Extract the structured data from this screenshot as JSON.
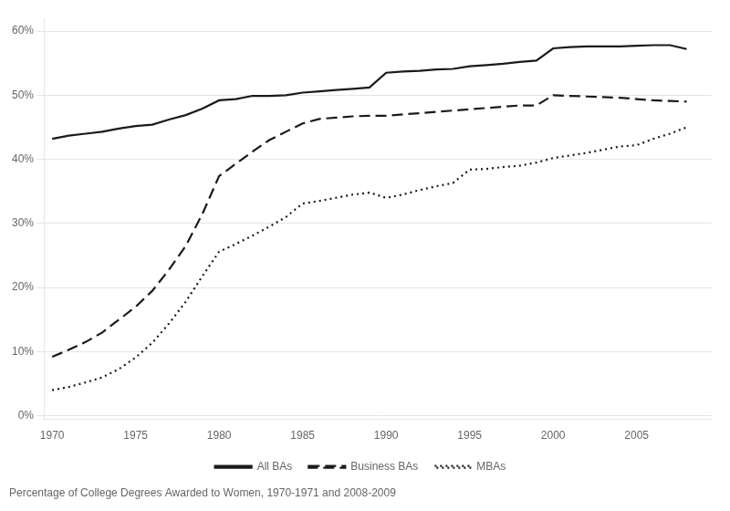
{
  "chart_data": {
    "type": "line",
    "title": "Percentage of College Degrees Awarded to Women, 1970-1971 and 2008-2009",
    "xlim": [
      1969.5,
      2009.5
    ],
    "ylim": [
      -0.005,
      0.62
    ],
    "xticks": [
      1970,
      1975,
      1980,
      1985,
      1990,
      1995,
      2000,
      2005
    ],
    "yticks": [
      {
        "value": 0.0,
        "label": "0%"
      },
      {
        "value": 0.1,
        "label": "10%"
      },
      {
        "value": 0.2,
        "label": "20%"
      },
      {
        "value": 0.3,
        "label": "30%"
      },
      {
        "value": 0.4,
        "label": "40%"
      },
      {
        "value": 0.5,
        "label": "50%"
      },
      {
        "value": 0.6,
        "label": "60%"
      }
    ],
    "grid": "y",
    "legend": "bottom",
    "series": [
      {
        "name": "All BAs",
        "color": "#1a1a1a",
        "line_style": "solid",
        "x": [
          1970,
          1971,
          1972,
          1973,
          1974,
          1975,
          1976,
          1977,
          1978,
          1979,
          1980,
          1981,
          1982,
          1983,
          1984,
          1985,
          1986,
          1987,
          1988,
          1989,
          1990,
          1991,
          1992,
          1993,
          1994,
          1995,
          1996,
          1997,
          1998,
          1999,
          2000,
          2001,
          2002,
          2003,
          2004,
          2005,
          2006,
          2007,
          2008
        ],
        "values": [
          0.432,
          0.437,
          0.44,
          0.443,
          0.448,
          0.452,
          0.454,
          0.462,
          0.469,
          0.479,
          0.492,
          0.494,
          0.499,
          0.499,
          0.5,
          0.504,
          0.506,
          0.508,
          0.51,
          0.512,
          0.535,
          0.537,
          0.538,
          0.54,
          0.541,
          0.545,
          0.547,
          0.549,
          0.552,
          0.554,
          0.573,
          0.575,
          0.576,
          0.576,
          0.576,
          0.577,
          0.578,
          0.578,
          0.572
        ]
      },
      {
        "name": "Business BAs",
        "color": "#1a1a1a",
        "line_style": "dashed",
        "x": [
          1970,
          1971,
          1972,
          1973,
          1974,
          1975,
          1976,
          1977,
          1978,
          1979,
          1980,
          1981,
          1982,
          1983,
          1984,
          1985,
          1986,
          1987,
          1988,
          1989,
          1990,
          1991,
          1992,
          1993,
          1994,
          1995,
          1996,
          1997,
          1998,
          1999,
          2000,
          2001,
          2002,
          2003,
          2004,
          2005,
          2006,
          2007,
          2008
        ],
        "values": [
          0.092,
          0.103,
          0.115,
          0.13,
          0.15,
          0.17,
          0.195,
          0.228,
          0.265,
          0.315,
          0.374,
          0.393,
          0.412,
          0.43,
          0.443,
          0.456,
          0.463,
          0.465,
          0.467,
          0.468,
          0.468,
          0.47,
          0.472,
          0.474,
          0.476,
          0.478,
          0.48,
          0.482,
          0.484,
          0.484,
          0.5,
          0.499,
          0.498,
          0.497,
          0.496,
          0.494,
          0.492,
          0.491,
          0.49
        ]
      },
      {
        "name": "MBAs",
        "color": "#1a1a1a",
        "line_style": "dotted",
        "x": [
          1970,
          1971,
          1972,
          1973,
          1974,
          1975,
          1976,
          1977,
          1978,
          1979,
          1980,
          1981,
          1982,
          1983,
          1984,
          1985,
          1986,
          1987,
          1988,
          1989,
          1990,
          1991,
          1992,
          1993,
          1994,
          1995,
          1996,
          1997,
          1998,
          1999,
          2000,
          2001,
          2002,
          2003,
          2004,
          2005,
          2006,
          2007,
          2008
        ],
        "values": [
          0.04,
          0.045,
          0.052,
          0.06,
          0.073,
          0.091,
          0.114,
          0.144,
          0.178,
          0.218,
          0.256,
          0.268,
          0.281,
          0.295,
          0.31,
          0.331,
          0.335,
          0.34,
          0.345,
          0.348,
          0.34,
          0.345,
          0.352,
          0.358,
          0.363,
          0.384,
          0.385,
          0.388,
          0.39,
          0.395,
          0.402,
          0.406,
          0.41,
          0.415,
          0.42,
          0.422,
          0.432,
          0.44,
          0.45
        ]
      }
    ]
  }
}
